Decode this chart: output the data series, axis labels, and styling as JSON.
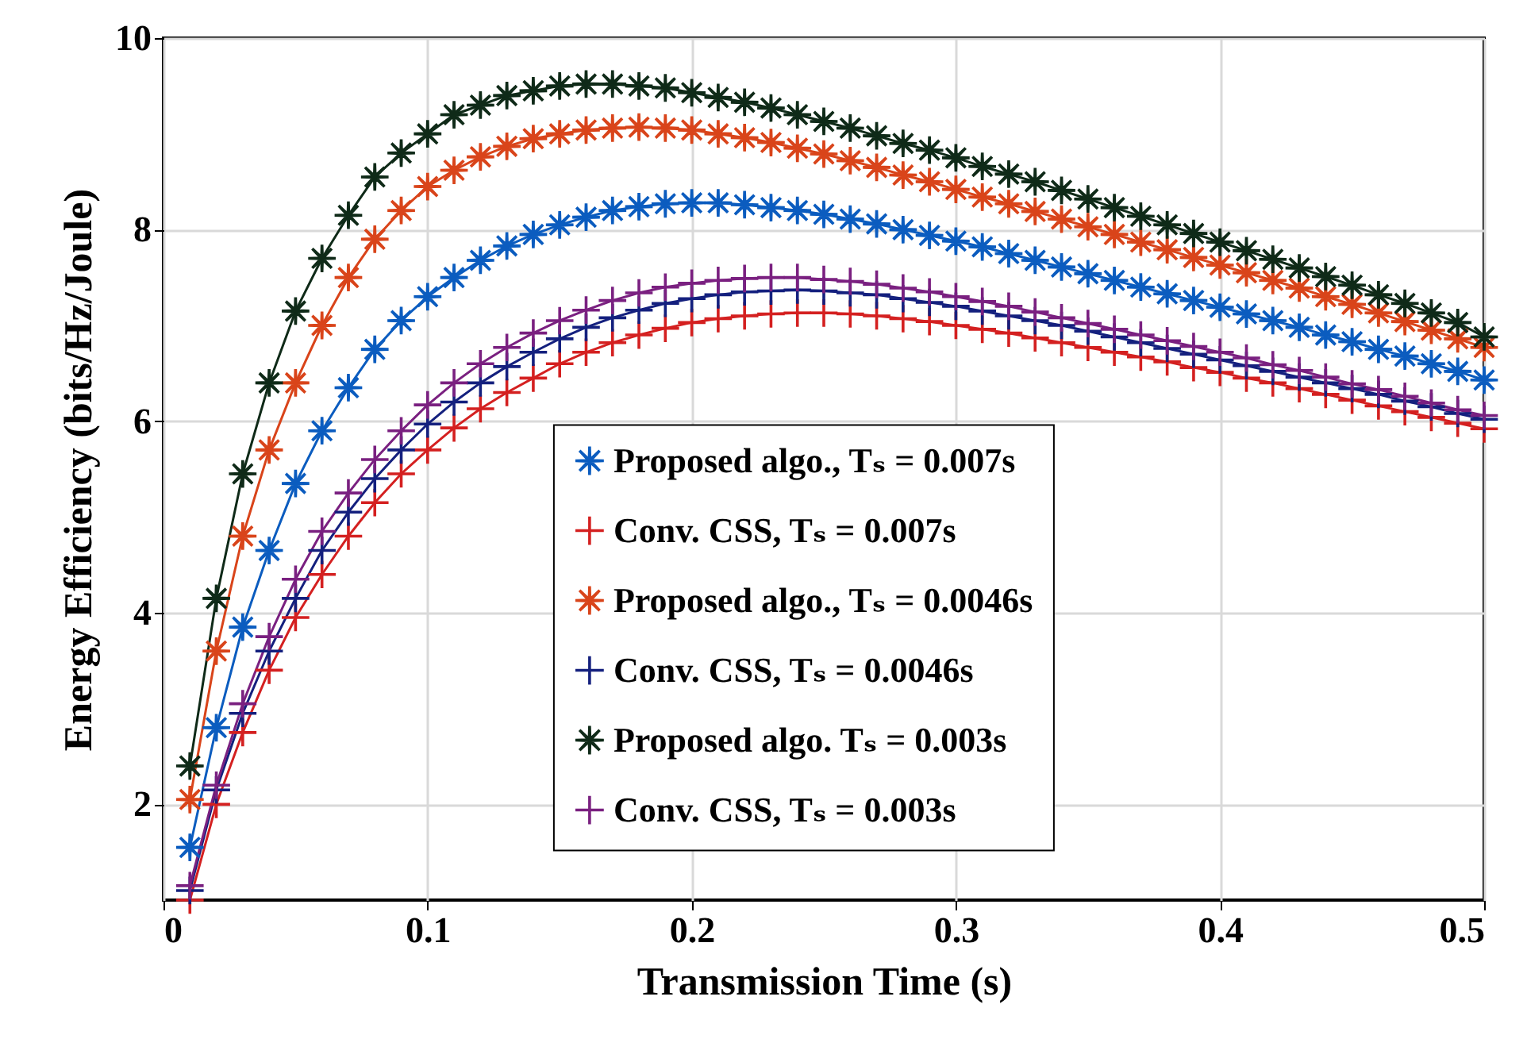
{
  "chart_data": {
    "type": "line",
    "xlabel": "Transmission Time (s)",
    "ylabel": "Energy Efficiency (bits/Hz/Joule)",
    "x": [
      0.01,
      0.02,
      0.03,
      0.04,
      0.05,
      0.06,
      0.07,
      0.08,
      0.09,
      0.1,
      0.11,
      0.12,
      0.13,
      0.14,
      0.15,
      0.16,
      0.17,
      0.18,
      0.19,
      0.2,
      0.21,
      0.22,
      0.23,
      0.24,
      0.25,
      0.26,
      0.27,
      0.28,
      0.29,
      0.3,
      0.31,
      0.32,
      0.33,
      0.34,
      0.35,
      0.36,
      0.37,
      0.38,
      0.39,
      0.4,
      0.41,
      0.42,
      0.43,
      0.44,
      0.45,
      0.46,
      0.47,
      0.48,
      0.49,
      0.5
    ],
    "xlim": [
      0,
      0.5
    ],
    "xticks": [
      0,
      0.1,
      0.2,
      0.3,
      0.4,
      0.5
    ],
    "ylim": [
      1,
      10
    ],
    "yticks": [
      2,
      4,
      6,
      8,
      10
    ],
    "grid": true,
    "legend": "bottom right",
    "series": [
      {
        "name": "Proposed algo., Tₛ = 0.007s",
        "color": "#0b5cbf",
        "marker": "star",
        "values": [
          1.55,
          2.8,
          3.85,
          4.65,
          5.35,
          5.9,
          6.35,
          6.75,
          7.05,
          7.3,
          7.5,
          7.68,
          7.83,
          7.95,
          8.05,
          8.13,
          8.2,
          8.24,
          8.27,
          8.28,
          8.28,
          8.26,
          8.23,
          8.2,
          8.16,
          8.11,
          8.06,
          8.0,
          7.94,
          7.88,
          7.82,
          7.75,
          7.68,
          7.61,
          7.54,
          7.47,
          7.4,
          7.33,
          7.26,
          7.19,
          7.12,
          7.05,
          6.98,
          6.9,
          6.83,
          6.75,
          6.68,
          6.6,
          6.52,
          6.43
        ]
      },
      {
        "name": "Conv. CSS, Tₛ = 0.007s",
        "color": "#d42020",
        "marker": "cross",
        "values": [
          1.0,
          2.0,
          2.75,
          3.4,
          3.95,
          4.4,
          4.8,
          5.15,
          5.45,
          5.7,
          5.93,
          6.13,
          6.3,
          6.45,
          6.6,
          6.72,
          6.82,
          6.9,
          6.97,
          7.03,
          7.07,
          7.1,
          7.12,
          7.13,
          7.13,
          7.12,
          7.1,
          7.07,
          7.04,
          7.0,
          6.96,
          6.92,
          6.87,
          6.82,
          6.77,
          6.72,
          6.67,
          6.62,
          6.56,
          6.51,
          6.45,
          6.4,
          6.34,
          6.28,
          6.22,
          6.16,
          6.1,
          6.04,
          5.98,
          5.92
        ]
      },
      {
        "name": "Proposed algo., Tₛ = 0.0046s",
        "color": "#d9441a",
        "marker": "star",
        "values": [
          2.05,
          3.6,
          4.8,
          5.7,
          6.4,
          7.0,
          7.5,
          7.9,
          8.2,
          8.45,
          8.62,
          8.76,
          8.87,
          8.95,
          9.0,
          9.04,
          9.06,
          9.07,
          9.06,
          9.04,
          9.0,
          8.96,
          8.91,
          8.85,
          8.79,
          8.72,
          8.65,
          8.57,
          8.5,
          8.42,
          8.34,
          8.27,
          8.19,
          8.11,
          8.03,
          7.95,
          7.87,
          7.79,
          7.71,
          7.63,
          7.55,
          7.47,
          7.39,
          7.3,
          7.22,
          7.13,
          7.04,
          6.95,
          6.86,
          6.77
        ]
      },
      {
        "name": "Conv. CSS, Tₛ = 0.0046s",
        "color": "#14207e",
        "marker": "cross",
        "values": [
          1.1,
          2.15,
          2.95,
          3.6,
          4.15,
          4.65,
          5.05,
          5.4,
          5.7,
          5.97,
          6.2,
          6.4,
          6.57,
          6.72,
          6.86,
          6.98,
          7.08,
          7.16,
          7.23,
          7.28,
          7.32,
          7.35,
          7.36,
          7.37,
          7.36,
          7.34,
          7.32,
          7.28,
          7.24,
          7.2,
          7.15,
          7.1,
          7.05,
          7.0,
          6.94,
          6.88,
          6.82,
          6.76,
          6.7,
          6.64,
          6.58,
          6.52,
          6.46,
          6.4,
          6.34,
          6.28,
          6.21,
          6.15,
          6.08,
          6.02
        ]
      },
      {
        "name": "Proposed algo. Tₛ = 0.003s",
        "color": "#0f2a18",
        "marker": "star",
        "values": [
          2.4,
          4.15,
          5.45,
          6.4,
          7.15,
          7.7,
          8.15,
          8.55,
          8.8,
          9.0,
          9.2,
          9.3,
          9.4,
          9.45,
          9.5,
          9.52,
          9.52,
          9.5,
          9.48,
          9.43,
          9.38,
          9.33,
          9.27,
          9.2,
          9.13,
          9.06,
          8.98,
          8.9,
          8.83,
          8.75,
          8.66,
          8.58,
          8.5,
          8.41,
          8.32,
          8.23,
          8.14,
          8.05,
          7.96,
          7.87,
          7.78,
          7.69,
          7.6,
          7.51,
          7.42,
          7.32,
          7.23,
          7.13,
          7.03,
          6.88
        ]
      },
      {
        "name": "Conv. CSS, Tₛ = 0.003s",
        "color": "#7a2080",
        "marker": "cross",
        "values": [
          1.15,
          2.2,
          3.05,
          3.75,
          4.35,
          4.85,
          5.25,
          5.6,
          5.9,
          6.17,
          6.4,
          6.6,
          6.77,
          6.92,
          7.05,
          7.16,
          7.26,
          7.34,
          7.4,
          7.44,
          7.47,
          7.49,
          7.5,
          7.5,
          7.48,
          7.46,
          7.43,
          7.39,
          7.35,
          7.3,
          7.25,
          7.2,
          7.14,
          7.08,
          7.02,
          6.96,
          6.9,
          6.84,
          6.78,
          6.72,
          6.66,
          6.59,
          6.53,
          6.46,
          6.39,
          6.33,
          6.26,
          6.19,
          6.12,
          6.06
        ]
      }
    ]
  }
}
